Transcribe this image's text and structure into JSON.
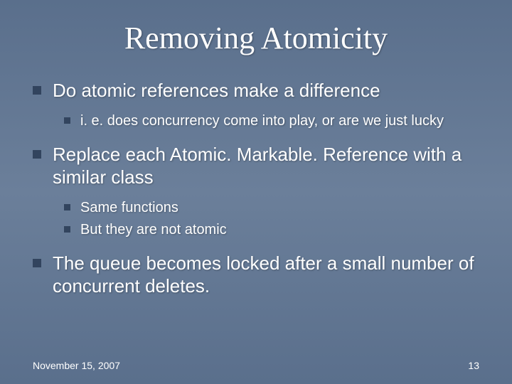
{
  "title": {
    "text": "Removing Atomicity",
    "fontsize": 44
  },
  "bullets": [
    {
      "text": "Do atomic references make a difference",
      "fontsize": 26,
      "sub": [
        {
          "text": "i. e. does concurrency come into play, or are we just lucky",
          "fontsize": 20
        }
      ]
    },
    {
      "text": "Replace each Atomic. Markable. Reference with a similar class",
      "fontsize": 26,
      "sub": [
        {
          "text": "Same functions",
          "fontsize": 20
        },
        {
          "text": "But they are not atomic",
          "fontsize": 20
        }
      ]
    },
    {
      "text": "The queue becomes locked after a small number of concurrent deletes.",
      "fontsize": 26,
      "sub": []
    }
  ],
  "footer": {
    "date": "November 15, 2007",
    "page": "13",
    "fontsize": 14
  },
  "colors": {
    "bullet_square": "#32445e",
    "text": "#ffffff",
    "bg_top": "#5a6f8c",
    "bg_mid": "#6b7f9a"
  }
}
